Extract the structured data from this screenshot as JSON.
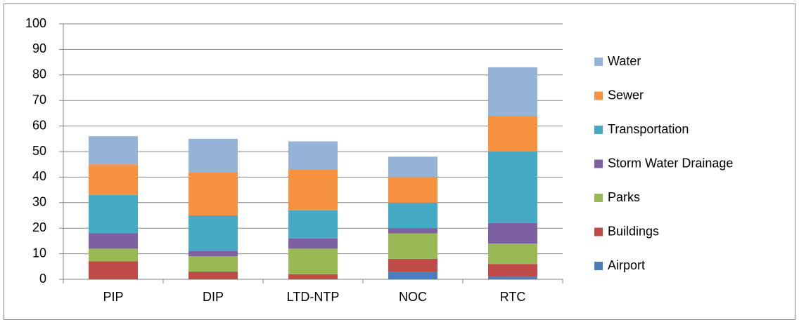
{
  "chart_data": {
    "type": "stacked_bar",
    "categories": [
      "PIP",
      "DIP",
      "LTD-NTP",
      "NOC",
      "RTC"
    ],
    "series": [
      {
        "name": "Airport",
        "color": "#4a7ebb",
        "values": [
          0,
          0,
          0,
          3,
          1
        ]
      },
      {
        "name": "Buildings",
        "color": "#be4b48",
        "values": [
          7,
          3,
          2,
          5,
          5
        ]
      },
      {
        "name": "Parks",
        "color": "#98b954",
        "values": [
          5,
          6,
          10,
          10,
          8
        ]
      },
      {
        "name": "Storm Water Drainage",
        "color": "#7d60a0",
        "values": [
          6,
          2,
          4,
          2,
          8
        ]
      },
      {
        "name": "Transportation",
        "color": "#46aac5",
        "values": [
          15,
          14,
          11,
          10,
          28
        ]
      },
      {
        "name": "Sewer",
        "color": "#f69240",
        "values": [
          12,
          17,
          16,
          10,
          14
        ]
      },
      {
        "name": "Water",
        "color": "#95b3d7",
        "values": [
          11,
          13,
          11,
          8,
          19
        ]
      }
    ],
    "ylim": [
      0,
      100
    ],
    "yticks": [
      0,
      10,
      20,
      30,
      40,
      50,
      60,
      70,
      80,
      90,
      100
    ],
    "grid": true,
    "legend": "right"
  }
}
